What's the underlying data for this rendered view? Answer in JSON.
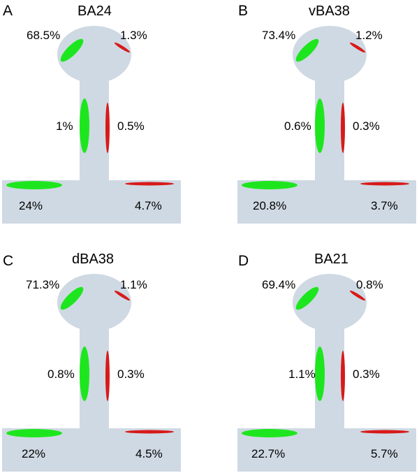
{
  "colors": {
    "shape_fill": "#cfd9e3",
    "green": "#1ee61e",
    "red": "#d81a1a"
  },
  "panels": [
    {
      "letter": "A",
      "title": "BA24",
      "head_left": "68.5%",
      "head_right": "1.3%",
      "neck_left": "1%",
      "neck_right": "0.5%",
      "base_left": "24%",
      "base_right": "4.7%"
    },
    {
      "letter": "B",
      "title": "vBA38",
      "head_left": "73.4%",
      "head_right": "1.2%",
      "neck_left": "0.6%",
      "neck_right": "0.3%",
      "base_left": "20.8%",
      "base_right": "3.7%"
    },
    {
      "letter": "C",
      "title": "dBA38",
      "head_left": "71.3%",
      "head_right": "1.1%",
      "neck_left": "0.8%",
      "neck_right": "0.3%",
      "base_left": "22%",
      "base_right": "4.5%"
    },
    {
      "letter": "D",
      "title": "BA21",
      "head_left": "69.4%",
      "head_right": "0.8%",
      "neck_left": "1.1%",
      "neck_right": "0.3%",
      "base_left": "22.7%",
      "base_right": "5.7%"
    }
  ]
}
